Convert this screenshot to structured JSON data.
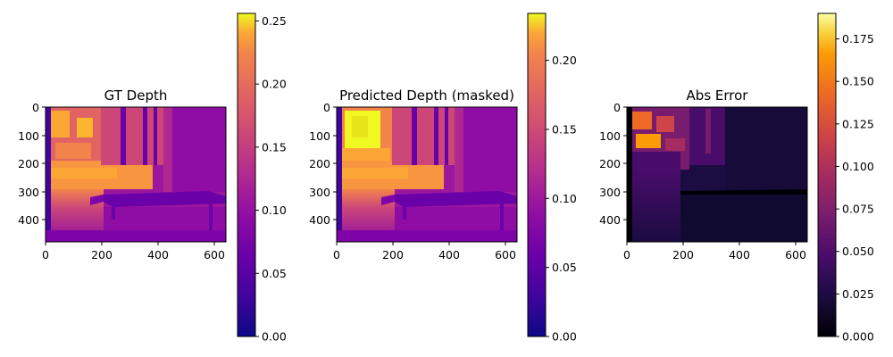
{
  "chart_data": [
    {
      "type": "heatmap",
      "title": "GT Depth",
      "colormap": "plasma",
      "image_extent": {
        "x": [
          0,
          640
        ],
        "y": [
          0,
          480
        ]
      },
      "x_ticks": [
        "0",
        "200",
        "400",
        "600"
      ],
      "y_ticks": [
        "0",
        "100",
        "200",
        "300",
        "400"
      ],
      "colorbar": {
        "range": [
          0,
          0.256
        ],
        "ticks": [
          "0.00",
          "0.05",
          "0.10",
          "0.15",
          "0.20",
          "0.25"
        ]
      }
    },
    {
      "type": "heatmap",
      "title": "Predicted Depth (masked)",
      "colormap": "plasma",
      "image_extent": {
        "x": [
          0,
          640
        ],
        "y": [
          0,
          480
        ]
      },
      "x_ticks": [
        "0",
        "200",
        "400",
        "600"
      ],
      "y_ticks": [
        "0",
        "100",
        "200",
        "300",
        "400"
      ],
      "colorbar": {
        "range": [
          0,
          0.234
        ],
        "ticks": [
          "0.00",
          "0.05",
          "0.10",
          "0.15",
          "0.20"
        ]
      }
    },
    {
      "type": "heatmap",
      "title": "Abs Error",
      "colormap": "inferno",
      "image_extent": {
        "x": [
          0,
          640
        ],
        "y": [
          0,
          480
        ]
      },
      "x_ticks": [
        "0",
        "200",
        "400",
        "600"
      ],
      "y_ticks": [
        "0",
        "100",
        "200",
        "300",
        "400"
      ],
      "colorbar": {
        "range": [
          0,
          0.19
        ],
        "ticks": [
          "0.000",
          "0.025",
          "0.050",
          "0.075",
          "0.100",
          "0.125",
          "0.150",
          "0.175"
        ]
      }
    }
  ]
}
